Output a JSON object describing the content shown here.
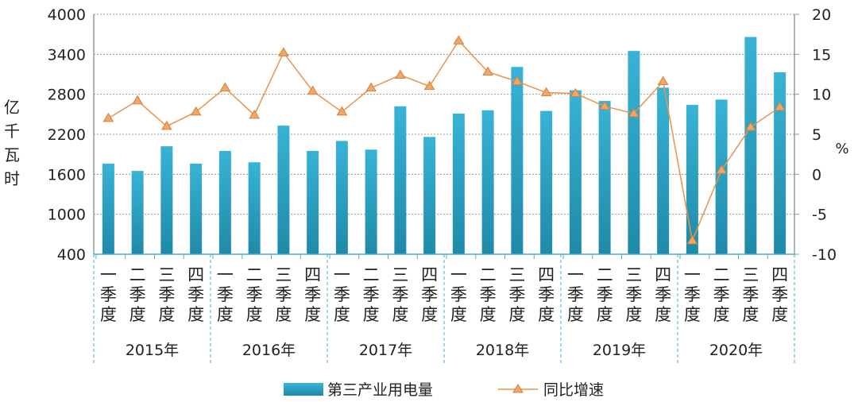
{
  "chart_data": {
    "type": "bar+line",
    "categories": [
      "一季度",
      "二季度",
      "三季度",
      "四季度",
      "一季度",
      "二季度",
      "三季度",
      "四季度",
      "一季度",
      "二季度",
      "三季度",
      "四季度",
      "一季度",
      "二季度",
      "三季度",
      "四季度",
      "一季度",
      "二季度",
      "三季度",
      "四季度",
      "一季度",
      "二季度",
      "三季度",
      "四季度"
    ],
    "groups": [
      "2015年",
      "2016年",
      "2017年",
      "2018年",
      "2019年",
      "2020年"
    ],
    "series": [
      {
        "name": "第三产业用电量",
        "type": "bar",
        "axis": "left",
        "color": "#2aa3c6",
        "values": [
          1760,
          1650,
          2020,
          1760,
          1950,
          1780,
          2330,
          1950,
          2100,
          1970,
          2620,
          2160,
          2510,
          2560,
          3210,
          2550,
          2860,
          2700,
          3450,
          2900,
          2640,
          2720,
          3660,
          3130
        ]
      },
      {
        "name": "同比增速",
        "type": "line",
        "axis": "right",
        "color": "#e8944a",
        "values": [
          7.0,
          9.2,
          6.0,
          7.8,
          10.8,
          7.4,
          15.2,
          10.4,
          7.8,
          10.8,
          12.4,
          11.0,
          16.7,
          12.8,
          11.6,
          10.2,
          10.1,
          8.5,
          7.6,
          11.6,
          -8.3,
          0.5,
          5.9,
          8.4
        ]
      }
    ],
    "ylabel": "亿千瓦时",
    "y2label": "%",
    "ylim": [
      400,
      4000
    ],
    "yticks": [
      "400",
      "1000",
      "1600",
      "2200",
      "2800",
      "3400",
      "4000"
    ],
    "y2lim": [
      -10,
      20
    ],
    "y2ticks": [
      "-10",
      "-5",
      "0",
      "5",
      "10",
      "15",
      "20"
    ],
    "grid": true,
    "legend": "bottom"
  }
}
